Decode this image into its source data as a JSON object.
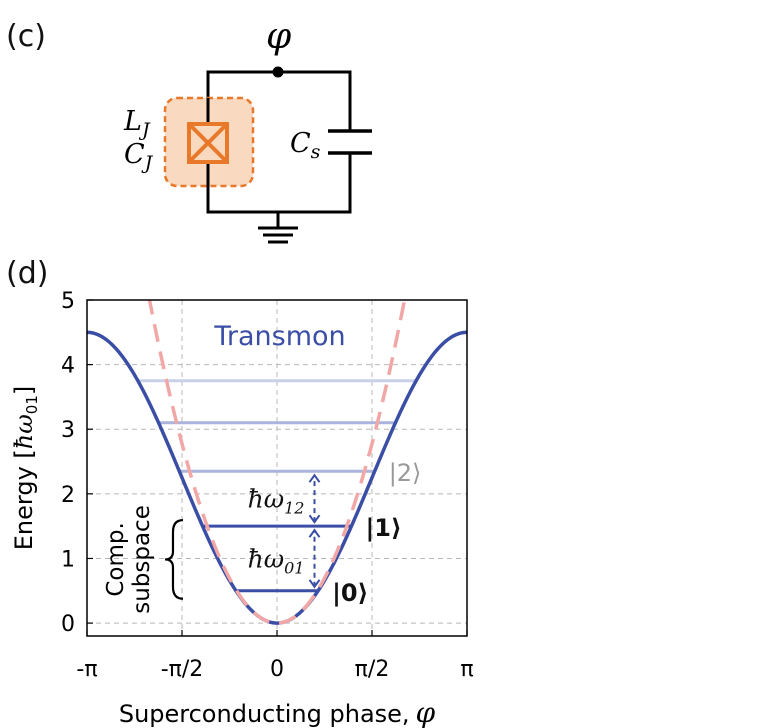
{
  "panel_c": {
    "label": "(c)",
    "node_label": "φ",
    "junction_L": "L",
    "junction_L_sub": "J",
    "junction_C": "C",
    "junction_C_sub": "J",
    "shunt_C": "C",
    "shunt_C_sub": "s",
    "colors": {
      "junction": "#e8782a",
      "junction_fill": "#f9d9bf",
      "wire": "#000000"
    }
  },
  "panel_d": {
    "label": "(d)",
    "chart_data": {
      "type": "line",
      "title": "Transmon",
      "xlabel": "Superconducting phase,",
      "xlabel_symbol": "φ",
      "ylabel": "Energy [",
      "ylabel_unit": "ħω",
      "ylabel_unit_sub": "01",
      "ylabel_close": "]",
      "xlim": [
        -3.14159,
        3.14159
      ],
      "ylim": [
        -0.2,
        5
      ],
      "x_ticks": [
        {
          "value": -3.14159,
          "label": "-π"
        },
        {
          "value": -1.5708,
          "label": "-π/2"
        },
        {
          "value": 0,
          "label": "0"
        },
        {
          "value": 1.5708,
          "label": "π/2"
        },
        {
          "value": 3.14159,
          "label": "π"
        }
      ],
      "y_ticks": [
        {
          "value": 0,
          "label": "0"
        },
        {
          "value": 1,
          "label": "1"
        },
        {
          "value": 2,
          "label": "2"
        },
        {
          "value": 3,
          "label": "3"
        },
        {
          "value": 4,
          "label": "4"
        },
        {
          "value": 5,
          "label": "5"
        }
      ],
      "grid": true,
      "series": [
        {
          "style": "solid",
          "color": "#3b4ea5",
          "function": "2.25*(1-cos(x))"
        },
        {
          "style": "dashed",
          "color": "#f2a7a7",
          "function": "1.125*x^2"
        }
      ],
      "energy_levels": [
        {
          "energy": 0.5,
          "label": "|0⟩",
          "color": "#3b4ea5"
        },
        {
          "energy": 1.5,
          "label": "|1⟩",
          "color": "#3b4ea5"
        },
        {
          "energy": 2.35,
          "label": "|2⟩",
          "color": "#aab4dc"
        },
        {
          "energy": 3.1,
          "label": "",
          "color": "#aab4dc"
        },
        {
          "energy": 3.75,
          "label": "",
          "color": "#c9d0ea"
        }
      ],
      "annotations": [
        {
          "text": "ħω",
          "sub": "01",
          "between": [
            0.5,
            1.5
          ]
        },
        {
          "text": "ħω",
          "sub": "12",
          "between": [
            1.5,
            2.35
          ]
        },
        {
          "text_line1": "Comp.",
          "text_line2": "subspace",
          "between": [
            0.5,
            1.5
          ]
        }
      ]
    }
  }
}
